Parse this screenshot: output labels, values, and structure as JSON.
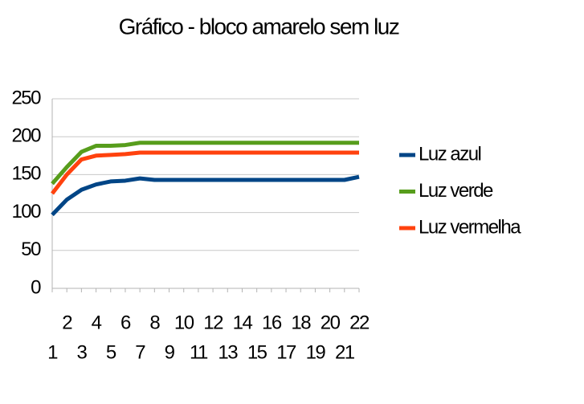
{
  "chart_data": {
    "type": "line",
    "title": "Gráfico - bloco amarelo sem luz",
    "categories": [
      "1",
      "2",
      "3",
      "4",
      "5",
      "6",
      "7",
      "8",
      "9",
      "10",
      "11",
      "12",
      "13",
      "14",
      "15",
      "16",
      "17",
      "18",
      "19",
      "20",
      "21",
      "22"
    ],
    "series": [
      {
        "name": "Luz azul",
        "color": "#004586",
        "values": [
          97,
          117,
          130,
          137,
          141,
          142,
          145,
          143,
          143,
          143,
          143,
          143,
          143,
          143,
          143,
          143,
          143,
          143,
          143,
          143,
          143,
          147
        ]
      },
      {
        "name": "Luz verde",
        "color": "#579d1c",
        "values": [
          138,
          160,
          180,
          188,
          188,
          189,
          192,
          192,
          192,
          192,
          192,
          192,
          192,
          192,
          192,
          192,
          192,
          192,
          192,
          192,
          192,
          192
        ]
      },
      {
        "name": "Luz vermelha",
        "color": "#ff420e",
        "values": [
          125,
          150,
          170,
          175,
          176,
          177,
          179,
          179,
          179,
          179,
          179,
          179,
          179,
          179,
          179,
          179,
          179,
          179,
          179,
          179,
          179,
          179
        ]
      }
    ],
    "ylim": [
      0,
      250
    ],
    "yticks": [
      0,
      50,
      100,
      150,
      200,
      250
    ],
    "grid": true,
    "legend": "right"
  }
}
